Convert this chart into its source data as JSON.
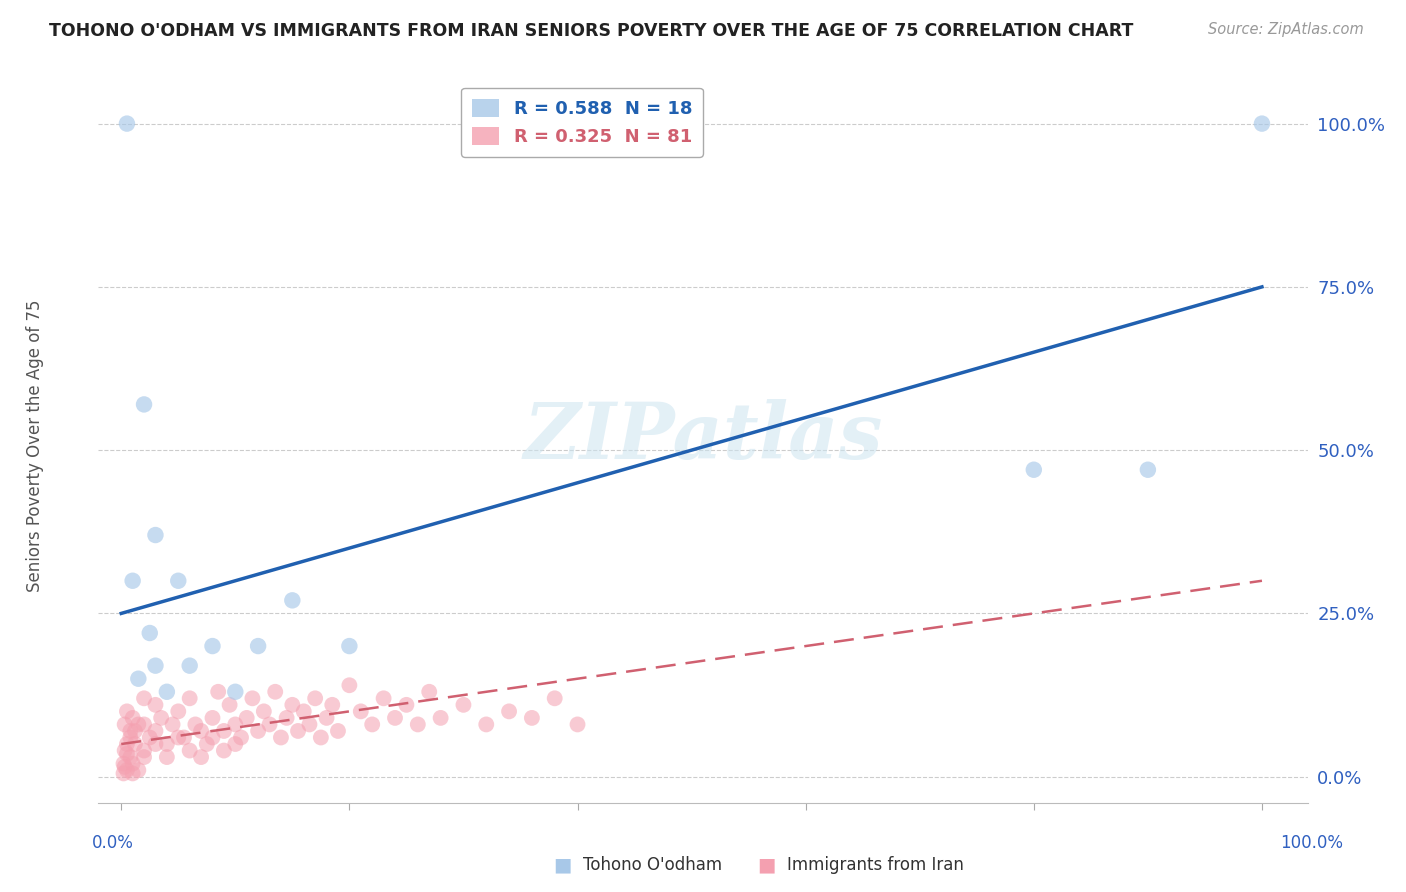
{
  "title": "TOHONO O'ODHAM VS IMMIGRANTS FROM IRAN SENIORS POVERTY OVER THE AGE OF 75 CORRELATION CHART",
  "source": "Source: ZipAtlas.com",
  "ylabel": "Seniors Poverty Over the Age of 75",
  "yticks": [
    "0.0%",
    "25.0%",
    "50.0%",
    "75.0%",
    "100.0%"
  ],
  "ytick_vals": [
    0,
    25,
    50,
    75,
    100
  ],
  "xtick_labels": [
    "0.0%",
    "100.0%"
  ],
  "xtick_vals": [
    0,
    100
  ],
  "legend_label1": "R = 0.588  N = 18",
  "legend_label2": "R = 0.325  N = 81",
  "legend_group1": "Tohono O'odham",
  "legend_group2": "Immigrants from Iran",
  "watermark": "ZIPatlas",
  "blue_scatter": [
    [
      0.5,
      100.0
    ],
    [
      100.0,
      100.0
    ],
    [
      2.0,
      57.0
    ],
    [
      3.0,
      37.0
    ],
    [
      5.0,
      30.0
    ],
    [
      1.0,
      30.0
    ],
    [
      15.0,
      27.0
    ],
    [
      2.5,
      22.0
    ],
    [
      8.0,
      20.0
    ],
    [
      12.0,
      20.0
    ],
    [
      20.0,
      20.0
    ],
    [
      3.0,
      17.0
    ],
    [
      6.0,
      17.0
    ],
    [
      1.5,
      15.0
    ],
    [
      80.0,
      47.0
    ],
    [
      90.0,
      47.0
    ],
    [
      4.0,
      13.0
    ],
    [
      10.0,
      13.0
    ]
  ],
  "pink_scatter": [
    [
      0.2,
      2.0
    ],
    [
      0.3,
      1.5
    ],
    [
      0.5,
      1.0
    ],
    [
      0.8,
      3.0
    ],
    [
      1.0,
      0.5
    ],
    [
      0.3,
      4.0
    ],
    [
      0.5,
      5.0
    ],
    [
      0.8,
      6.0
    ],
    [
      1.2,
      7.0
    ],
    [
      1.5,
      8.0
    ],
    [
      2.0,
      4.0
    ],
    [
      2.5,
      6.0
    ],
    [
      3.0,
      7.0
    ],
    [
      3.5,
      9.0
    ],
    [
      4.0,
      5.0
    ],
    [
      4.5,
      8.0
    ],
    [
      5.0,
      10.0
    ],
    [
      5.5,
      6.0
    ],
    [
      6.0,
      12.0
    ],
    [
      6.5,
      8.0
    ],
    [
      7.0,
      7.0
    ],
    [
      7.5,
      5.0
    ],
    [
      8.0,
      9.0
    ],
    [
      8.5,
      13.0
    ],
    [
      9.0,
      7.0
    ],
    [
      9.5,
      11.0
    ],
    [
      10.0,
      8.0
    ],
    [
      10.5,
      6.0
    ],
    [
      11.0,
      9.0
    ],
    [
      11.5,
      12.0
    ],
    [
      12.0,
      7.0
    ],
    [
      12.5,
      10.0
    ],
    [
      13.0,
      8.0
    ],
    [
      13.5,
      13.0
    ],
    [
      14.0,
      6.0
    ],
    [
      14.5,
      9.0
    ],
    [
      15.0,
      11.0
    ],
    [
      15.5,
      7.0
    ],
    [
      16.0,
      10.0
    ],
    [
      16.5,
      8.0
    ],
    [
      17.0,
      12.0
    ],
    [
      17.5,
      6.0
    ],
    [
      18.0,
      9.0
    ],
    [
      18.5,
      11.0
    ],
    [
      19.0,
      7.0
    ],
    [
      20.0,
      14.0
    ],
    [
      21.0,
      10.0
    ],
    [
      22.0,
      8.0
    ],
    [
      23.0,
      12.0
    ],
    [
      24.0,
      9.0
    ],
    [
      25.0,
      11.0
    ],
    [
      26.0,
      8.0
    ],
    [
      27.0,
      13.0
    ],
    [
      28.0,
      9.0
    ],
    [
      30.0,
      11.0
    ],
    [
      32.0,
      8.0
    ],
    [
      34.0,
      10.0
    ],
    [
      36.0,
      9.0
    ],
    [
      38.0,
      12.0
    ],
    [
      40.0,
      8.0
    ],
    [
      1.0,
      2.0
    ],
    [
      1.5,
      1.0
    ],
    [
      2.0,
      3.0
    ],
    [
      0.5,
      3.5
    ],
    [
      0.8,
      7.0
    ],
    [
      1.0,
      9.0
    ],
    [
      2.0,
      8.0
    ],
    [
      3.0,
      5.0
    ],
    [
      4.0,
      3.0
    ],
    [
      5.0,
      6.0
    ],
    [
      0.2,
      0.5
    ],
    [
      0.3,
      8.0
    ],
    [
      0.5,
      10.0
    ],
    [
      6.0,
      4.0
    ],
    [
      7.0,
      3.0
    ],
    [
      8.0,
      6.0
    ],
    [
      9.0,
      4.0
    ],
    [
      10.0,
      5.0
    ],
    [
      3.0,
      11.0
    ],
    [
      2.0,
      12.0
    ],
    [
      1.2,
      5.0
    ]
  ],
  "blue_line_x0": 0,
  "blue_line_x1": 100,
  "blue_line_y0": 25,
  "blue_line_y1": 75,
  "pink_line_x0": 0,
  "pink_line_x1": 100,
  "pink_line_y0": 5,
  "pink_line_y1": 30,
  "blue_color": "#a8c8e8",
  "pink_color": "#f4a0b0",
  "blue_line_color": "#2060b0",
  "pink_line_color": "#d06070",
  "background_color": "#ffffff",
  "grid_color": "#cccccc",
  "title_color": "#222222",
  "axis_label_color": "#555555",
  "tick_label_color": "#3060c0"
}
